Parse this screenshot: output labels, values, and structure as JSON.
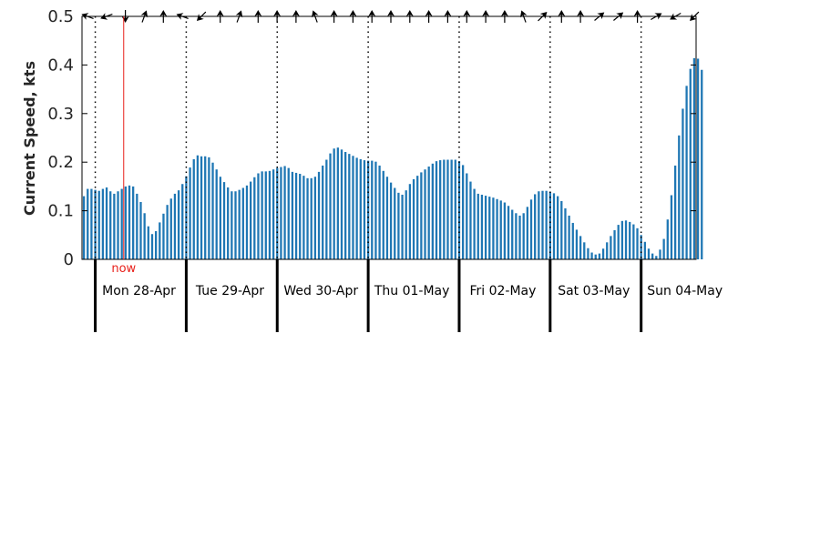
{
  "chart_data": {
    "type": "bar",
    "ylabel": "Current Speed, kts",
    "ylim": [
      0,
      0.5
    ],
    "yticks": [
      0,
      0.1,
      0.2,
      0.3,
      0.4,
      0.5
    ],
    "ytick_labels": [
      "0",
      "0.1",
      "0.2",
      "0.3",
      "0.4",
      "0.5"
    ],
    "x_start": "27-Apr 20:30",
    "x_end": "04-May 14:30",
    "hours_per_bar": 1,
    "day_labels": [
      "Mon 28-Apr",
      "Tue 29-Apr",
      "Wed 30-Apr",
      "Thu 01-May",
      "Fri 02-May",
      "Sat 03-May",
      "Sun 04-May"
    ],
    "now_label": "now",
    "now_time": "28-Apr 07:30",
    "colors": {
      "bar": "#1f77b4",
      "now": "#e8201a",
      "axis": "#000000"
    },
    "speed_series": {
      "name": "",
      "values": [
        0.13,
        0.145,
        0.145,
        0.143,
        0.141,
        0.145,
        0.148,
        0.14,
        0.135,
        0.14,
        0.145,
        0.15,
        0.152,
        0.15,
        0.135,
        0.118,
        0.095,
        0.068,
        0.052,
        0.058,
        0.076,
        0.094,
        0.112,
        0.125,
        0.135,
        0.142,
        0.155,
        0.171,
        0.189,
        0.206,
        0.214,
        0.212,
        0.212,
        0.21,
        0.199,
        0.185,
        0.17,
        0.159,
        0.148,
        0.14,
        0.14,
        0.143,
        0.147,
        0.152,
        0.16,
        0.169,
        0.177,
        0.181,
        0.181,
        0.182,
        0.185,
        0.188,
        0.19,
        0.192,
        0.188,
        0.18,
        0.178,
        0.176,
        0.172,
        0.167,
        0.167,
        0.17,
        0.18,
        0.193,
        0.205,
        0.218,
        0.228,
        0.23,
        0.226,
        0.221,
        0.217,
        0.213,
        0.209,
        0.206,
        0.204,
        0.203,
        0.203,
        0.201,
        0.193,
        0.182,
        0.17,
        0.158,
        0.147,
        0.137,
        0.133,
        0.142,
        0.155,
        0.165,
        0.172,
        0.179,
        0.185,
        0.191,
        0.197,
        0.202,
        0.204,
        0.205,
        0.205,
        0.205,
        0.205,
        0.202,
        0.194,
        0.177,
        0.16,
        0.145,
        0.135,
        0.133,
        0.131,
        0.129,
        0.127,
        0.124,
        0.121,
        0.117,
        0.11,
        0.102,
        0.095,
        0.09,
        0.095,
        0.108,
        0.123,
        0.134,
        0.14,
        0.141,
        0.141,
        0.139,
        0.136,
        0.13,
        0.12,
        0.105,
        0.09,
        0.075,
        0.061,
        0.048,
        0.035,
        0.023,
        0.014,
        0.01,
        0.012,
        0.022,
        0.035,
        0.048,
        0.06,
        0.071,
        0.079,
        0.08,
        0.077,
        0.072,
        0.064,
        0.05,
        0.036,
        0.022,
        0.012,
        0.007,
        0.02,
        0.042,
        0.082,
        0.132,
        0.193,
        0.255,
        0.31,
        0.357,
        0.392,
        0.414,
        0.413,
        0.39
      ]
    },
    "direction_arrows_deg": [
      200,
      160,
      90,
      290,
      270,
      200,
      135,
      270,
      290,
      270,
      270,
      270,
      250,
      270,
      270,
      270,
      270,
      270,
      270,
      270,
      270,
      270,
      270,
      250,
      315,
      270,
      270,
      320,
      320,
      270,
      330,
      150,
      135
    ]
  }
}
